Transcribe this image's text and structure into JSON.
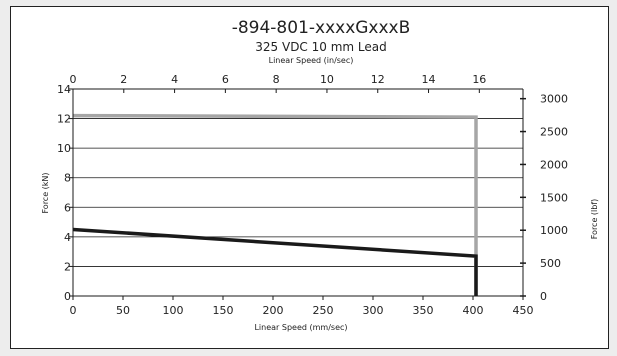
{
  "chart_data": {
    "type": "line",
    "title": "-894-801-xxxxGxxxB",
    "subtitle": "325 VDC 10 mm Lead",
    "x_label_bottom": "Linear Speed (mm/sec)",
    "x_label_top": "Linear Speed (in/sec)",
    "y_label_left": "Force (kN)",
    "y_label_right": "Force (lbf)",
    "xlim_bottom": [
      0,
      450
    ],
    "xticks_bottom": [
      "0",
      "50",
      "100",
      "150",
      "200",
      "250",
      "300",
      "350",
      "400",
      "450"
    ],
    "xlim_top": [
      0,
      17.72
    ],
    "xticks_top": [
      "0",
      "2",
      "4",
      "6",
      "8",
      "10",
      "12",
      "14",
      "16"
    ],
    "ylim_left": [
      0,
      14
    ],
    "yticks_left": [
      "0",
      "2",
      "4",
      "6",
      "8",
      "10",
      "12",
      "14"
    ],
    "ylim_right": [
      0,
      3147
    ],
    "yticks_right": [
      "0",
      "500",
      "1000",
      "1500",
      "2000",
      "2500",
      "3000"
    ],
    "grid": true,
    "series": [
      {
        "color": "#a6a6a6",
        "x": [
          0,
          403,
          403
        ],
        "y": [
          12.2,
          12.1,
          0
        ]
      },
      {
        "color": "#1a1a1a",
        "x": [
          0,
          403,
          403
        ],
        "y": [
          4.5,
          2.7,
          0
        ]
      }
    ]
  }
}
